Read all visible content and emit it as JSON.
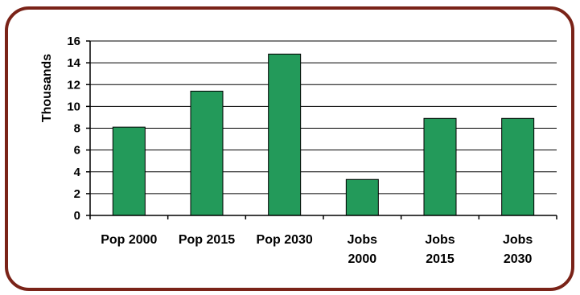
{
  "chart_data": {
    "type": "bar",
    "title": "",
    "xlabel": "",
    "ylabel": "Thousands",
    "categories": [
      [
        "Pop 2000"
      ],
      [
        "Pop 2015"
      ],
      [
        "Pop 2030"
      ],
      [
        "Jobs",
        "2000"
      ],
      [
        "Jobs",
        "2015"
      ],
      [
        "Jobs",
        "2030"
      ]
    ],
    "values": [
      8.1,
      11.4,
      14.8,
      3.3,
      8.9,
      8.9
    ],
    "ylim": [
      0,
      16
    ],
    "yticks": [
      "0",
      "2",
      "4",
      "6",
      "8",
      "10",
      "12",
      "14",
      "16"
    ],
    "grid": true,
    "legend": "none",
    "bar_color": "#239a5a",
    "bar_stroke": "#000000",
    "frame_color": "#7a2318"
  }
}
